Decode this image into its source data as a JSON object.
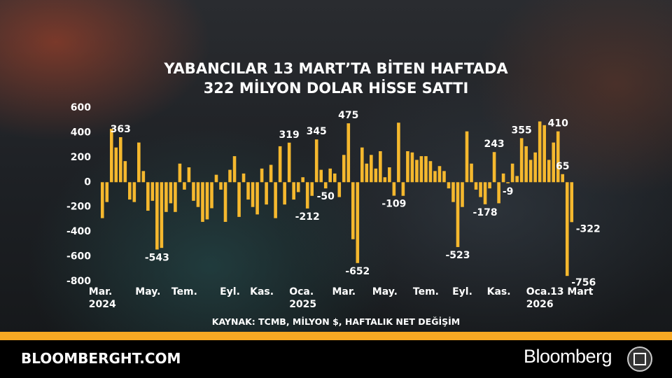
{
  "chart_data": {
    "type": "bar",
    "title_lines": [
      "YABANCILAR 13 MART’TA BİTEN HAFTADA",
      "322 MİLYON DOLAR HİSSE SATTI"
    ],
    "source": "KAYNAK: TCMB, MİLYON $, HAFTALIK NET DEĞİŞİM",
    "footer_site": "BLOOMBERGHT.COM",
    "footer_brand": "Bloomberg",
    "color": "#f5b82e",
    "ylim": [
      -800,
      600
    ],
    "yticks": [
      600,
      400,
      200,
      0,
      -200,
      -400,
      -600,
      -800
    ],
    "categories": [
      "Mar.\n2024",
      null,
      null,
      null,
      null,
      null,
      null,
      null,
      null,
      null,
      "May.",
      null,
      null,
      null,
      null,
      null,
      null,
      null,
      "Tem.",
      null,
      null,
      null,
      null,
      null,
      null,
      null,
      null,
      null,
      "Eyl.",
      null,
      null,
      null,
      null,
      null,
      null,
      "Kas.",
      null,
      null,
      null,
      null,
      null,
      null,
      null,
      null,
      "Oca.\n2025",
      null,
      null,
      null,
      null,
      null,
      null,
      null,
      null,
      "Mar.",
      null,
      null,
      null,
      null,
      null,
      null,
      null,
      null,
      "May.",
      null,
      null,
      null,
      null,
      null,
      null,
      null,
      null,
      "Tem.",
      null,
      null,
      null,
      null,
      null,
      null,
      null,
      "Eyl.",
      null,
      null,
      null,
      null,
      null,
      null,
      null,
      "Kas.",
      null,
      null,
      null,
      null,
      null,
      null,
      null,
      null,
      "Oca.\n2026",
      null,
      null,
      null,
      null,
      null,
      null,
      "13 Mart"
    ],
    "values": [
      -290,
      -160,
      430,
      280,
      363,
      170,
      -140,
      -160,
      320,
      90,
      -230,
      -150,
      -543,
      -530,
      -240,
      -170,
      -240,
      150,
      -60,
      120,
      -150,
      -200,
      -320,
      -300,
      -210,
      60,
      -60,
      -320,
      100,
      210,
      -280,
      70,
      -140,
      -200,
      -260,
      110,
      -180,
      140,
      -290,
      290,
      -180,
      319,
      -140,
      -80,
      40,
      -212,
      -110,
      345,
      100,
      -50,
      110,
      70,
      -120,
      220,
      475,
      -460,
      -652,
      280,
      150,
      220,
      110,
      250,
      40,
      120,
      -109,
      480,
      -110,
      250,
      240,
      180,
      210,
      210,
      170,
      90,
      130,
      90,
      -50,
      -160,
      -523,
      -200,
      410,
      150,
      -60,
      -120,
      -178,
      -50,
      243,
      -170,
      70,
      -9,
      150,
      50,
      355,
      290,
      180,
      240,
      490,
      460,
      180,
      320,
      410,
      65,
      -756,
      -322
    ],
    "value_labels": [
      null,
      null,
      null,
      null,
      "363",
      null,
      null,
      null,
      null,
      null,
      null,
      null,
      "-543",
      null,
      null,
      null,
      null,
      null,
      null,
      null,
      null,
      null,
      null,
      null,
      null,
      null,
      null,
      null,
      null,
      null,
      null,
      null,
      null,
      null,
      null,
      null,
      null,
      null,
      null,
      null,
      null,
      "319",
      null,
      null,
      null,
      "-212",
      null,
      "345",
      null,
      "-50",
      null,
      null,
      null,
      null,
      "475",
      null,
      "-652",
      null,
      null,
      null,
      null,
      null,
      null,
      null,
      "-109",
      null,
      null,
      null,
      null,
      null,
      null,
      null,
      null,
      null,
      null,
      null,
      null,
      null,
      "-523",
      null,
      null,
      null,
      null,
      null,
      "-178",
      null,
      "243",
      null,
      null,
      "-9",
      null,
      null,
      "355",
      null,
      null,
      null,
      null,
      null,
      null,
      null,
      "410",
      "65",
      "-756",
      "-322"
    ]
  }
}
